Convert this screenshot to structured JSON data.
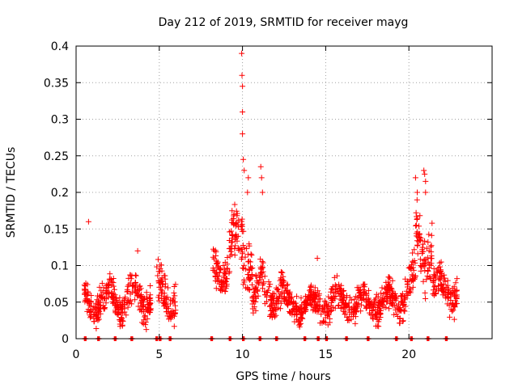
{
  "chart_data": {
    "type": "scatter",
    "title": "Day 212 of 2019, SRMTID for receiver mayg",
    "xlabel": "GPS time / hours",
    "ylabel": "SRMTID / TECUs",
    "xlim": [
      0,
      25
    ],
    "ylim": [
      0,
      0.4
    ],
    "grid": true,
    "marker": "+",
    "color": "#ff0000",
    "x_ticks": [
      0,
      5,
      10,
      15,
      20
    ],
    "y_ticks": [
      0,
      0.05,
      0.1,
      0.15,
      0.2,
      0.25,
      0.3,
      0.35,
      0.4
    ],
    "y_tick_labels": [
      "0",
      "0.05",
      "0.1",
      "0.15",
      "0.2",
      "0.25",
      "0.3",
      "0.35",
      "0.4"
    ],
    "segments": [
      {
        "t0": 0.5,
        "t1": 1.8,
        "base": 0.05,
        "spread": 0.03
      },
      {
        "t0": 1.8,
        "t1": 2.6,
        "base": 0.055,
        "spread": 0.03
      },
      {
        "t0": 2.6,
        "t1": 4.5,
        "base": 0.055,
        "spread": 0.035
      },
      {
        "t0": 4.8,
        "t1": 6.0,
        "base": 0.06,
        "spread": 0.04
      },
      {
        "t0": 8.2,
        "t1": 9.2,
        "base": 0.095,
        "spread": 0.04
      },
      {
        "t0": 9.2,
        "t1": 10.6,
        "base": 0.12,
        "spread": 0.06
      },
      {
        "t0": 10.6,
        "t1": 12.5,
        "base": 0.065,
        "spread": 0.035
      },
      {
        "t0": 12.5,
        "t1": 15.0,
        "base": 0.045,
        "spread": 0.025
      },
      {
        "t0": 15.0,
        "t1": 19.5,
        "base": 0.05,
        "spread": 0.03
      },
      {
        "t0": 19.5,
        "t1": 20.4,
        "base": 0.07,
        "spread": 0.04
      },
      {
        "t0": 20.4,
        "t1": 21.4,
        "base": 0.13,
        "spread": 0.06
      },
      {
        "t0": 21.4,
        "t1": 22.9,
        "base": 0.07,
        "spread": 0.035
      }
    ],
    "peaks": [
      {
        "x": 0.75,
        "y": 0.16
      },
      {
        "x": 9.95,
        "y": 0.39
      },
      {
        "x": 9.97,
        "y": 0.36
      },
      {
        "x": 10.0,
        "y": 0.345
      },
      {
        "x": 10.0,
        "y": 0.31
      },
      {
        "x": 10.0,
        "y": 0.28
      },
      {
        "x": 10.05,
        "y": 0.245
      },
      {
        "x": 10.1,
        "y": 0.23
      },
      {
        "x": 10.3,
        "y": 0.2
      },
      {
        "x": 10.35,
        "y": 0.22
      },
      {
        "x": 11.1,
        "y": 0.235
      },
      {
        "x": 11.15,
        "y": 0.22
      },
      {
        "x": 11.2,
        "y": 0.2
      },
      {
        "x": 20.4,
        "y": 0.22
      },
      {
        "x": 20.5,
        "y": 0.2
      },
      {
        "x": 20.9,
        "y": 0.23
      },
      {
        "x": 20.95,
        "y": 0.225
      },
      {
        "x": 21.0,
        "y": 0.215
      },
      {
        "x": 21.0,
        "y": 0.2
      },
      {
        "x": 3.7,
        "y": 0.12
      },
      {
        "x": 14.5,
        "y": 0.11
      }
    ],
    "zero_markers": [
      0.5,
      1.3,
      2.3,
      3.3,
      4.8,
      5.0,
      5.6,
      8.1,
      9.2,
      10.0,
      11.0,
      12.0,
      13.7,
      14.5,
      15.0,
      16.2,
      17.5,
      19.2,
      20.1,
      21.1,
      22.2
    ]
  }
}
